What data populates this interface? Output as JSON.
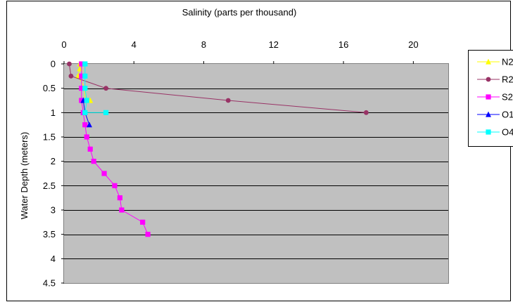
{
  "chart_data": {
    "type": "line",
    "title": "",
    "xlabel": "Salinity (parts per thousand)",
    "ylabel": "Water Depth (meters)",
    "xlim": [
      0,
      22
    ],
    "ylim": [
      0,
      4.5
    ],
    "y_inverted": true,
    "x_axis_position": "top",
    "x_ticks": [
      0,
      4,
      8,
      12,
      16,
      20
    ],
    "y_ticks": [
      0,
      0.5,
      1,
      1.5,
      2,
      2.5,
      3,
      3.5,
      4,
      4.5
    ],
    "y_tick_labels": [
      "0",
      "0.5",
      "1",
      "1.5",
      "2",
      "2.5",
      "3",
      "3.5",
      "4",
      "4.5"
    ],
    "grid": "horizontal",
    "plot_background": "#c0c0c0",
    "legend_position": "right",
    "series": [
      {
        "name": "N2",
        "color": "#ffff00",
        "marker": "triangle",
        "points": [
          [
            0.9,
            0
          ],
          [
            0.9,
            0.1
          ],
          [
            0.8,
            0.25
          ],
          [
            1.2,
            0.5
          ],
          [
            1.2,
            0.75
          ],
          [
            1.5,
            0.75
          ]
        ]
      },
      {
        "name": "R2",
        "color": "#993366",
        "marker": "circle",
        "points": [
          [
            0.3,
            0
          ],
          [
            0.4,
            0.25
          ],
          [
            2.4,
            0.5
          ],
          [
            9.4,
            0.75
          ],
          [
            17.3,
            1.0
          ]
        ]
      },
      {
        "name": "S2",
        "color": "#ff00ff",
        "marker": "square",
        "points": [
          [
            1.0,
            0
          ],
          [
            1.0,
            0.25
          ],
          [
            1.0,
            0.5
          ],
          [
            1.0,
            0.75
          ],
          [
            1.1,
            1.0
          ],
          [
            1.2,
            1.25
          ],
          [
            1.3,
            1.5
          ],
          [
            1.5,
            1.75
          ],
          [
            1.7,
            2.0
          ],
          [
            2.3,
            2.25
          ],
          [
            2.9,
            2.5
          ],
          [
            3.2,
            2.75
          ],
          [
            3.3,
            3.0
          ],
          [
            4.5,
            3.25
          ],
          [
            4.8,
            3.5
          ]
        ]
      },
      {
        "name": "O1",
        "color": "#0000ff",
        "marker": "triangle",
        "points": [
          [
            1.1,
            0.75
          ],
          [
            1.2,
            1.0
          ],
          [
            1.45,
            1.25
          ]
        ]
      },
      {
        "name": "O4",
        "color": "#00ffff",
        "marker": "square",
        "points": [
          [
            1.2,
            0
          ],
          [
            1.2,
            0.25
          ],
          [
            1.2,
            0.5
          ],
          [
            1.3,
            0.75
          ],
          [
            1.2,
            1.0
          ],
          [
            2.4,
            1.0
          ]
        ]
      }
    ]
  }
}
